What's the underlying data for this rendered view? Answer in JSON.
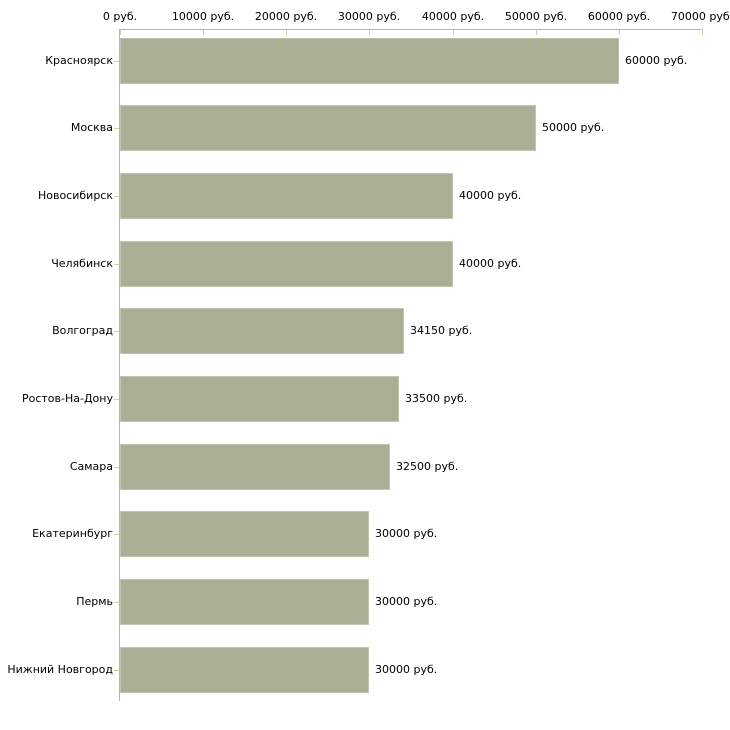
{
  "chart_data": {
    "type": "bar",
    "orientation": "horizontal",
    "title": "",
    "xlabel": "",
    "ylabel": "",
    "unit": "руб.",
    "xlim": [
      0,
      70000
    ],
    "grid": false,
    "legend": null,
    "x_tick_values": [
      0,
      10000,
      20000,
      30000,
      40000,
      50000,
      60000,
      70000
    ],
    "x_tick_labels": [
      "0 руб.",
      "10000 руб.",
      "20000 руб.",
      "30000 руб.",
      "40000 руб.",
      "50000 руб.",
      "60000 руб.",
      "70000 руб."
    ],
    "categories": [
      "Красноярск",
      "Москва",
      "Новосибирск",
      "Челябинск",
      "Волгоград",
      "Ростов-На-Дону",
      "Самара",
      "Екатеринбург",
      "Пермь",
      "Нижний Новгород"
    ],
    "values": [
      60000,
      50000,
      40000,
      40000,
      34150,
      33500,
      32500,
      30000,
      30000,
      30000
    ],
    "value_labels": [
      "60000 руб.",
      "50000 руб.",
      "40000 руб.",
      "40000 руб.",
      "34150 руб.",
      "33500 руб.",
      "32500 руб.",
      "30000 руб.",
      "30000 руб.",
      "30000 руб."
    ],
    "colors": {
      "background": "#ffffff",
      "bar": "#a9af94",
      "bar_border": "#c2c5ad",
      "axis_line": "#b6b6ae",
      "tick_mark": "#cfd2a6",
      "text": "#000000"
    }
  }
}
